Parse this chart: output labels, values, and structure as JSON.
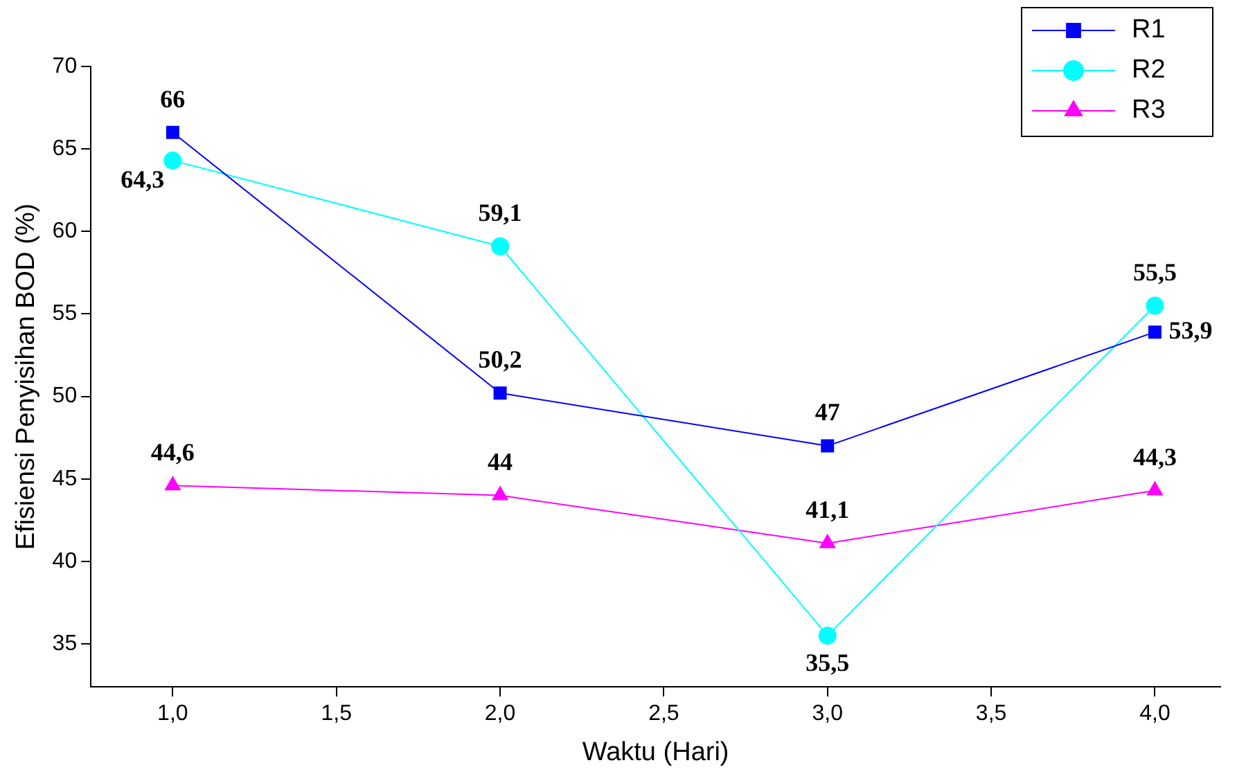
{
  "chart_data": {
    "type": "line",
    "xlabel": "Waktu (Hari)",
    "ylabel": "Efisiensi Penyisihan BOD (%)",
    "x": [
      1,
      2,
      3,
      4
    ],
    "series": [
      {
        "name": "R1",
        "color": "#0000ff",
        "marker": "square",
        "values": [
          66,
          50.2,
          47,
          53.9
        ],
        "value_labels": [
          "66",
          "50,2",
          "47",
          "53,9"
        ]
      },
      {
        "name": "R2",
        "color": "#00ffff",
        "marker": "circle",
        "values": [
          64.3,
          59.1,
          35.5,
          55.5
        ],
        "value_labels": [
          "64,3",
          "59,1",
          "35,5",
          "55,5"
        ]
      },
      {
        "name": "R3",
        "color": "#ff00ff",
        "marker": "triangle",
        "values": [
          44.6,
          44,
          41.1,
          44.3
        ],
        "value_labels": [
          "44,6",
          "44",
          "41,1",
          "44,3"
        ]
      }
    ],
    "xlim": [
      0.75,
      4.2
    ],
    "xticks": [
      {
        "value": 1,
        "label": "1,0"
      },
      {
        "value": 1.5,
        "label": "1,5"
      },
      {
        "value": 2,
        "label": "2,0"
      },
      {
        "value": 2.5,
        "label": "2,5"
      },
      {
        "value": 3,
        "label": "3,0"
      },
      {
        "value": 3.5,
        "label": "3,5"
      },
      {
        "value": 4,
        "label": "4,0"
      }
    ],
    "ylim": [
      32.4,
      70
    ],
    "yticks": [
      35,
      40,
      45,
      50,
      55,
      60,
      65,
      70
    ],
    "grid": false,
    "legend": "top right",
    "line_style": "solid"
  }
}
